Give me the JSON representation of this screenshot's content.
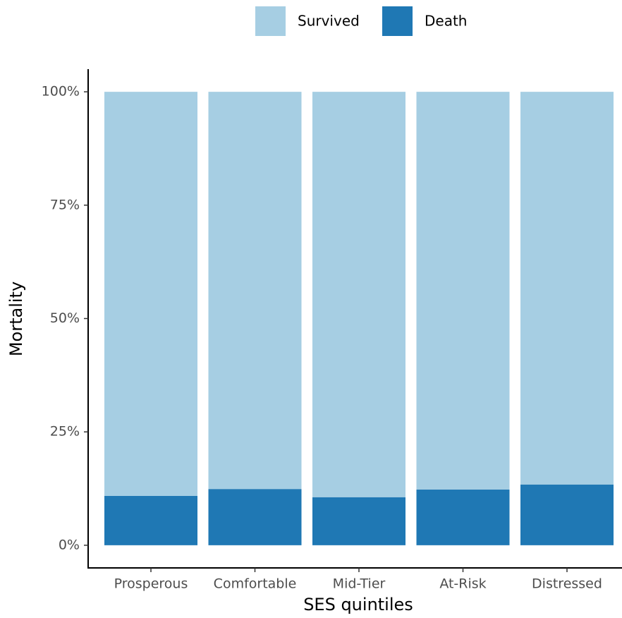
{
  "chart_data": {
    "type": "stacked_bar",
    "x_label": "SES quintiles",
    "y_label": "Mortality",
    "categories": [
      "Prosperous",
      "Comfortable",
      "Mid-Tier",
      "At-Risk",
      "Distressed"
    ],
    "series": [
      {
        "name": "Survived",
        "color": "#a6cee3",
        "values": [
          89.1,
          87.6,
          89.4,
          87.7,
          86.6
        ]
      },
      {
        "name": "Death",
        "color": "#1f78b4",
        "values": [
          10.9,
          12.4,
          10.6,
          12.3,
          13.4
        ]
      }
    ],
    "ylim": [
      -5,
      105
    ],
    "yticks": [
      {
        "value": 0,
        "label": "0%"
      },
      {
        "value": 25,
        "label": "25%"
      },
      {
        "value": 50,
        "label": "50%"
      },
      {
        "value": 75,
        "label": "75%"
      },
      {
        "value": 100,
        "label": "100%"
      }
    ],
    "legend_position": "top",
    "grid": false
  }
}
